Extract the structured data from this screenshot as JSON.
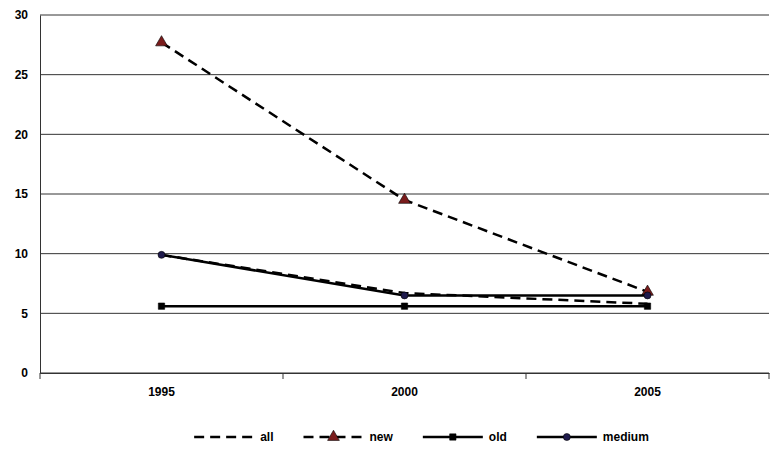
{
  "chart_data": {
    "type": "line",
    "categories": [
      "1995",
      "2000",
      "2005"
    ],
    "series": [
      {
        "name": "all",
        "color": "#000000",
        "line_style": "dashed",
        "marker": "none",
        "values": [
          9.9,
          6.7,
          5.8
        ]
      },
      {
        "name": "new",
        "color": "#7a1c1c",
        "line_style": "dashed",
        "marker": "triangle",
        "values": [
          27.7,
          14.5,
          6.8
        ]
      },
      {
        "name": "old",
        "color": "#000000",
        "line_style": "solid",
        "marker": "square",
        "values": [
          5.6,
          5.6,
          5.6
        ]
      },
      {
        "name": "medium",
        "color": "#1f1b4d",
        "line_style": "solid",
        "marker": "circle",
        "values": [
          9.9,
          6.5,
          6.5
        ]
      }
    ],
    "ylim": [
      0,
      30
    ],
    "yticks": [
      0,
      5,
      10,
      15,
      20,
      25,
      30
    ],
    "grid": true,
    "legend": "bottom"
  }
}
